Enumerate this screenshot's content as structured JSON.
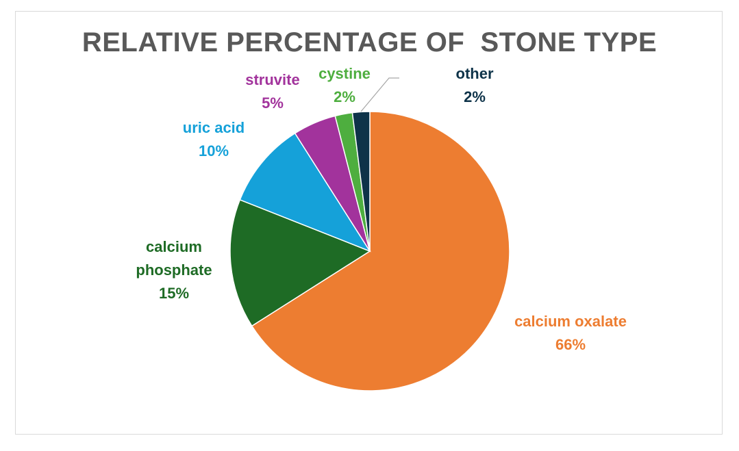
{
  "chart_data": {
    "type": "pie",
    "title": "RELATIVE PERCENTAGE OF  STONE TYPE",
    "slices": [
      {
        "label": "calcium oxalate",
        "value": 66,
        "value_label": "66%",
        "color": "#ED7D31"
      },
      {
        "label": "calcium phosphate",
        "value": 15,
        "value_label": "15%",
        "color": "#1E6B25"
      },
      {
        "label": "uric acid",
        "value": 10,
        "value_label": "10%",
        "color": "#15A1D9"
      },
      {
        "label": "struvite",
        "value": 5,
        "value_label": "5%",
        "color": "#A2339C"
      },
      {
        "label": "cystine",
        "value": 2,
        "value_label": "2%",
        "color": "#4EAE3F"
      },
      {
        "label": "other",
        "value": 2,
        "value_label": "2%",
        "color": "#0E3349"
      }
    ],
    "legend": "none"
  }
}
